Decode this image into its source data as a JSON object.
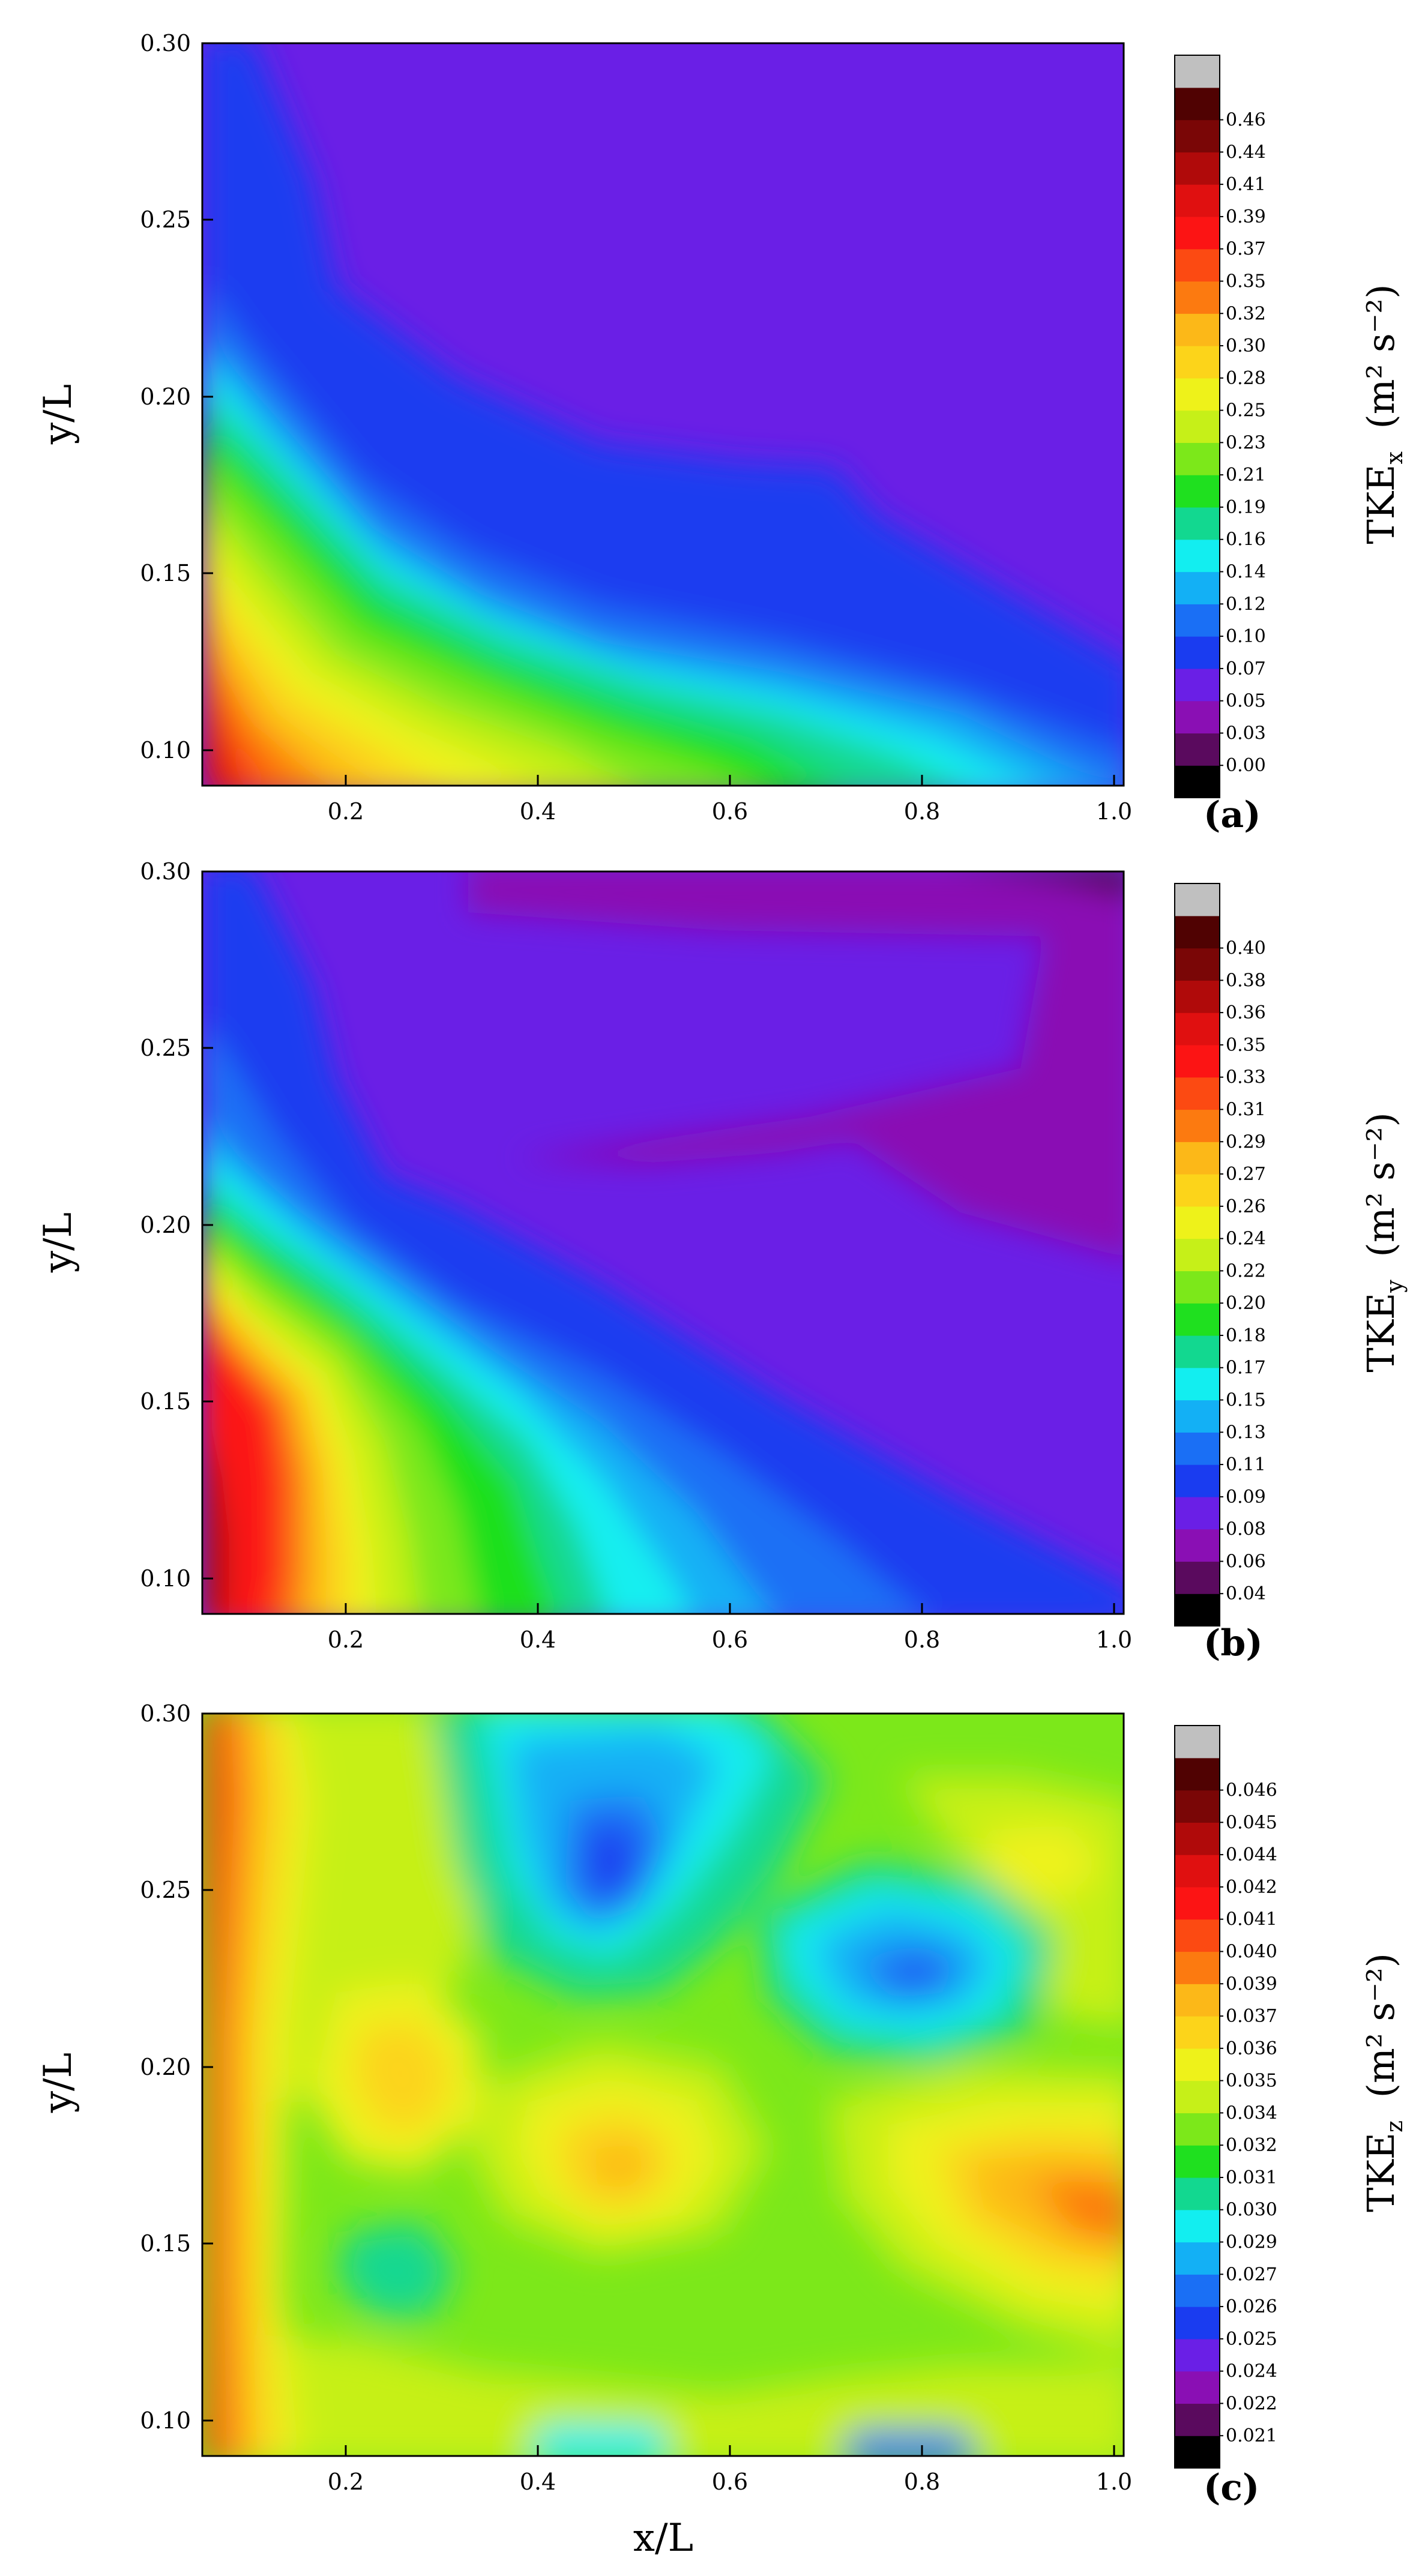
{
  "chart_data": [
    {
      "type": "heatmap",
      "panel_label": "(a)",
      "xlabel": "",
      "ylabel": "y/L",
      "x_ticks": [
        "0.2",
        "0.4",
        "0.6",
        "0.8",
        "1.0"
      ],
      "y_ticks": [
        "0.10",
        "0.15",
        "0.20",
        "0.25",
        "0.30"
      ],
      "xlim": [
        0.04,
        1.0
      ],
      "ylim": [
        0.09,
        0.3
      ],
      "colorbar": {
        "title_main": "TKE",
        "title_sub": "x",
        "title_units": "(m² s⁻²)",
        "levels": [
          "0.00",
          "0.03",
          "0.05",
          "0.07",
          "0.10",
          "0.12",
          "0.14",
          "0.16",
          "0.19",
          "0.21",
          "0.23",
          "0.25",
          "0.28",
          "0.30",
          "0.32",
          "0.35",
          "0.37",
          "0.39",
          "0.41",
          "0.44",
          "0.46"
        ]
      }
    },
    {
      "type": "heatmap",
      "panel_label": "(b)",
      "xlabel": "",
      "ylabel": "y/L",
      "x_ticks": [
        "0.2",
        "0.4",
        "0.6",
        "0.8",
        "1.0"
      ],
      "y_ticks": [
        "0.10",
        "0.15",
        "0.20",
        "0.25",
        "0.30"
      ],
      "xlim": [
        0.04,
        1.0
      ],
      "ylim": [
        0.09,
        0.3
      ],
      "colorbar": {
        "title_main": "TKE",
        "title_sub": "y",
        "title_units": "(m² s⁻²)",
        "levels": [
          "0.04",
          "0.06",
          "0.08",
          "0.09",
          "0.11",
          "0.13",
          "0.15",
          "0.17",
          "0.18",
          "0.20",
          "0.22",
          "0.24",
          "0.26",
          "0.27",
          "0.29",
          "0.31",
          "0.33",
          "0.35",
          "0.36",
          "0.38",
          "0.40"
        ]
      }
    },
    {
      "type": "heatmap",
      "panel_label": "(c)",
      "xlabel": "x/L",
      "ylabel": "y/L",
      "x_ticks": [
        "0.2",
        "0.4",
        "0.6",
        "0.8",
        "1.0"
      ],
      "y_ticks": [
        "0.10",
        "0.15",
        "0.20",
        "0.25",
        "0.30"
      ],
      "xlim": [
        0.04,
        1.0
      ],
      "ylim": [
        0.09,
        0.3
      ],
      "colorbar": {
        "title_main": "TKE",
        "title_sub": "z",
        "title_units": "(m² s⁻²)",
        "levels": [
          "0.021",
          "0.022",
          "0.024",
          "0.025",
          "0.026",
          "0.027",
          "0.029",
          "0.030",
          "0.031",
          "0.032",
          "0.034",
          "0.035",
          "0.036",
          "0.037",
          "0.039",
          "0.040",
          "0.041",
          "0.042",
          "0.044",
          "0.045",
          "0.046"
        ]
      }
    }
  ],
  "palette": [
    "#000000",
    "#5a0a5e",
    "#8a0fb4",
    "#6a1fe6",
    "#1a3cf0",
    "#1a6ff5",
    "#13b0f5",
    "#12eef0",
    "#12d890",
    "#1fe01f",
    "#7ce81a",
    "#c6f018",
    "#eef21a",
    "#fcd41a",
    "#fcb818",
    "#fc7a10",
    "#fc4a12",
    "#fc1414",
    "#e01010",
    "#b00a0a",
    "#7a0606",
    "#500202",
    "#c0c0c0"
  ]
}
